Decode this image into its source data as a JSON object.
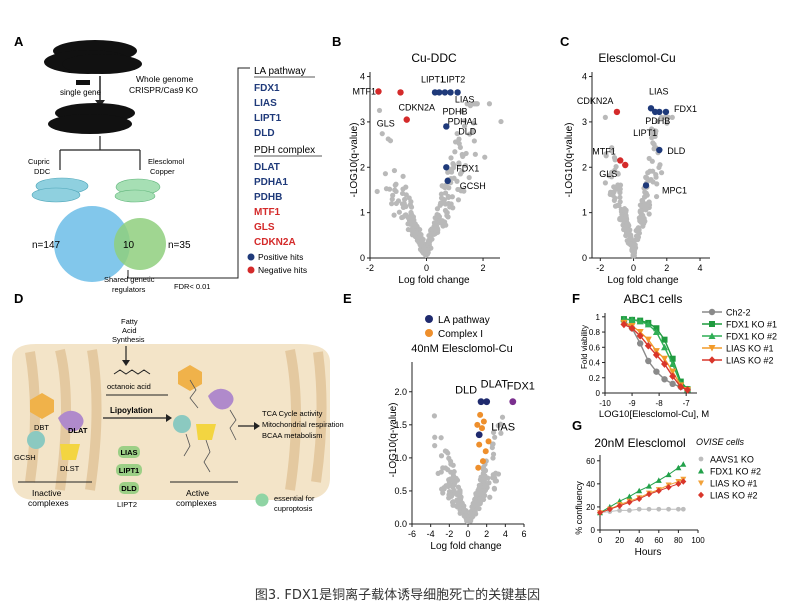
{
  "caption": "图3. FDX1是铜离子载体诱导细胞死亡的关键基因",
  "colors": {
    "positive": "#1f3a7a",
    "negative": "#d42a2a",
    "gray": "#b9b9b9",
    "la": "#1f2a6e",
    "complex": "#ee8f2c",
    "green": "#22a14a",
    "orange": "#f29b2a",
    "red": "#d9362b"
  },
  "panel_a": {
    "letter": "A",
    "single_gene": "single gene",
    "screen_line1": "Whole genome",
    "screen_line2": "CRISPR/Cas9 KO",
    "cupric_line1": "Cupric",
    "cupric_line2": "DDC",
    "elesclomol_line1": "Elesclomol",
    "elesclomol_line2": "Copper",
    "n_left": "n=147",
    "n_overlap": "10",
    "n_right": "n=35",
    "shared_line1": "Shared genetic",
    "shared_line2": "regulators",
    "fdr": "FDR< 0.01",
    "la_header": "LA pathway",
    "la_genes": [
      "FDX1",
      "LIAS",
      "LIPT1",
      "DLD"
    ],
    "pdh_header": "PDH complex",
    "pdh_genes": [
      "DLAT",
      "PDHA1",
      "PDHB"
    ],
    "neg_genes": [
      "MTF1",
      "GLS",
      "CDKN2A"
    ],
    "legend_positive": "Positive hits",
    "legend_negative": "Negative hits"
  },
  "panel_b": {
    "letter": "B",
    "chart_data": {
      "type": "scatter",
      "title": "Cu-DDC",
      "xlabel": "Log fold change",
      "ylabel": "-LOG10(q-value)",
      "xlim": [
        -2,
        2.6
      ],
      "ylim": [
        0,
        4.1
      ],
      "xticks": [
        -2,
        0,
        2
      ],
      "yticks": [
        0,
        1,
        2,
        3,
        4
      ],
      "highlighted": [
        {
          "gene": "MTF1",
          "x": -1.7,
          "y": 3.67,
          "group": "negative"
        },
        {
          "gene": "CDKN2A",
          "x": -0.92,
          "y": 3.65,
          "group": "negative"
        },
        {
          "gene": "GLS",
          "x": -0.7,
          "y": 3.05,
          "group": "negative"
        },
        {
          "gene": "LIPT1",
          "x": 0.3,
          "y": 3.65,
          "group": "positive"
        },
        {
          "gene": "LIPT2",
          "x": 0.45,
          "y": 3.65,
          "group": "positive"
        },
        {
          "gene": "LIAS",
          "x": 0.65,
          "y": 3.65,
          "group": "positive"
        },
        {
          "gene": "PDHB",
          "x": 0.85,
          "y": 3.65,
          "group": "positive"
        },
        {
          "gene": "PDHA1",
          "x": 1.1,
          "y": 3.65,
          "group": "positive"
        },
        {
          "gene": "DLD",
          "x": 0.7,
          "y": 2.9,
          "group": "positive"
        },
        {
          "gene": "FDX1",
          "x": 0.7,
          "y": 2.0,
          "group": "positive"
        },
        {
          "gene": "GCSH",
          "x": 0.75,
          "y": 1.7,
          "group": "positive"
        }
      ]
    }
  },
  "panel_c": {
    "letter": "C",
    "chart_data": {
      "type": "scatter",
      "title": "Elesclomol-Cu",
      "xlabel": "Log fold change",
      "ylabel": "-LOG10(q-value)",
      "xlim": [
        -2.5,
        4.6
      ],
      "ylim": [
        0,
        4.1
      ],
      "xticks": [
        -2,
        0,
        2,
        4
      ],
      "yticks": [
        0,
        1,
        2,
        3,
        4
      ],
      "highlighted": [
        {
          "gene": "CDKN2A",
          "x": -1.0,
          "y": 3.22,
          "group": "negative"
        },
        {
          "gene": "MTF1",
          "x": -0.8,
          "y": 2.15,
          "group": "negative"
        },
        {
          "gene": "GLS",
          "x": -0.5,
          "y": 2.05,
          "group": "negative"
        },
        {
          "gene": "LIAS",
          "x": 1.05,
          "y": 3.3,
          "group": "positive"
        },
        {
          "gene": "PDHB",
          "x": 1.55,
          "y": 3.22,
          "group": "positive"
        },
        {
          "gene": "FDX1",
          "x": 1.95,
          "y": 3.22,
          "group": "positive"
        },
        {
          "gene": "LIPT1",
          "x": 1.3,
          "y": 3.22,
          "group": "positive"
        },
        {
          "gene": "DLD",
          "x": 1.55,
          "y": 2.38,
          "group": "positive"
        },
        {
          "gene": "MPC1",
          "x": 0.75,
          "y": 1.6,
          "group": "positive"
        }
      ]
    }
  },
  "panel_d": {
    "letter": "D",
    "fatty_line1": "Fatty",
    "fatty_line2": "Acid",
    "fatty_line3": "Synthesis",
    "octanoic": "octanoic acid",
    "lipoylation": "Lipoylation",
    "enzymes": [
      "LIAS",
      "LIPT1",
      "DLD"
    ],
    "lipt2": "LIPT2",
    "dbt": "DBT",
    "dlat": "DLAT",
    "gcsh": "GCSH",
    "dlst": "DLST",
    "inactive_line1": "Inactive",
    "inactive_line2": "complexes",
    "active_line1": "Active",
    "active_line2": "complexes",
    "outcomes": [
      "TCA Cycle activity",
      "Mitochondrial respiration",
      "BCAA metabolism"
    ],
    "legend_line1": "essential for",
    "legend_line2": "cuproptosis"
  },
  "panel_e": {
    "letter": "E",
    "legend": [
      "LA  pathway",
      "Complex I"
    ],
    "chart_data": {
      "type": "scatter",
      "title": "40nM Elesclomol-Cu",
      "xlabel": "Log fold change",
      "ylabel": "-LOG10(q-value)",
      "xlim": [
        -6,
        6
      ],
      "ylim": [
        0,
        2.45
      ],
      "xticks": [
        -6,
        -4,
        -2,
        0,
        2,
        4,
        6
      ],
      "yticks": [
        0,
        0.5,
        1.0,
        1.5,
        2.0
      ],
      "highlighted": [
        {
          "gene": "DLD",
          "x": 1.4,
          "y": 1.85,
          "group": "la"
        },
        {
          "gene": "DLAT",
          "x": 2.0,
          "y": 1.85,
          "group": "la"
        },
        {
          "gene": "FDX1",
          "x": 4.8,
          "y": 1.85,
          "group": "fdx1"
        },
        {
          "gene": "LIAS",
          "x": 1.2,
          "y": 1.35,
          "group": "la"
        }
      ]
    }
  },
  "panel_f": {
    "letter": "F",
    "chart_data": {
      "type": "line",
      "title": "ABC1 cells",
      "xlabel": "LOG10[Elesclomol-Cu], M",
      "ylabel": "Fold viability",
      "xlim": [
        -10,
        -6.6
      ],
      "ylim": [
        0,
        1.05
      ],
      "xticks": [
        -10,
        -9,
        -8,
        -7
      ],
      "yticks": [
        0,
        0.2,
        0.4,
        0.6,
        0.8,
        1.0
      ],
      "x": [
        -9.3,
        -9.0,
        -8.7,
        -8.4,
        -8.1,
        -7.8,
        -7.5,
        -7.2,
        -6.95
      ],
      "series": [
        {
          "name": "Ch2-2",
          "values": [
            0.95,
            0.85,
            0.65,
            0.42,
            0.28,
            0.18,
            0.12,
            0.08,
            0.05
          ]
        },
        {
          "name": "FDX1 KO #1",
          "values": [
            0.97,
            0.96,
            0.95,
            0.92,
            0.85,
            0.7,
            0.45,
            0.15,
            0.05
          ]
        },
        {
          "name": "FDX1 KO #2",
          "values": [
            0.97,
            0.96,
            0.94,
            0.9,
            0.8,
            0.6,
            0.38,
            0.12,
            0.05
          ]
        },
        {
          "name": "LIAS KO #1",
          "values": [
            0.92,
            0.88,
            0.8,
            0.7,
            0.55,
            0.45,
            0.28,
            0.1,
            0.04
          ]
        },
        {
          "name": "LIAS KO #2",
          "values": [
            0.9,
            0.85,
            0.75,
            0.62,
            0.5,
            0.38,
            0.22,
            0.08,
            0.04
          ]
        }
      ]
    }
  },
  "panel_g": {
    "letter": "G",
    "legend_title": "OVISE cells",
    "chart_data": {
      "type": "line",
      "title": "20nM Elesclomol",
      "xlabel": "Hours",
      "ylabel": "% confluency",
      "xlim": [
        0,
        100
      ],
      "ylim": [
        0,
        65
      ],
      "xticks": [
        0,
        20,
        40,
        60,
        80,
        100
      ],
      "yticks": [
        0,
        20,
        40,
        60
      ],
      "x": [
        0,
        10,
        20,
        30,
        40,
        50,
        60,
        70,
        80,
        85
      ],
      "series": [
        {
          "name": "AAVS1 KO",
          "values": [
            15,
            16,
            17,
            17,
            18,
            18,
            18,
            18,
            18,
            18
          ]
        },
        {
          "name": "FDX1 KO #2",
          "values": [
            15,
            20,
            25,
            29,
            34,
            38,
            43,
            48,
            54,
            57
          ]
        },
        {
          "name": "LIAS KO #1",
          "values": [
            15,
            18,
            22,
            25,
            28,
            32,
            35,
            39,
            42,
            44
          ]
        },
        {
          "name": "LIAS KO #2",
          "values": [
            15,
            18,
            21,
            24,
            27,
            31,
            34,
            37,
            40,
            42
          ]
        }
      ]
    }
  }
}
